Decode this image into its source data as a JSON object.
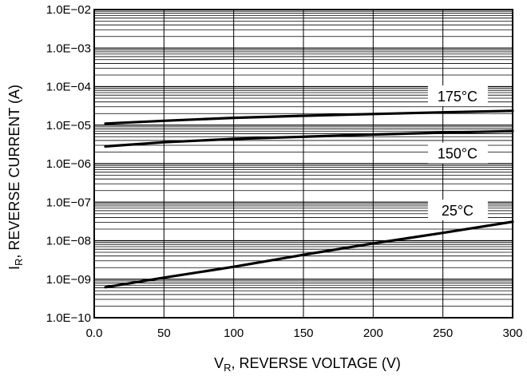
{
  "chart_data": {
    "type": "line",
    "title": "",
    "xlabel": {
      "main": "V",
      "sub": "R",
      "rest": ", REVERSE VOLTAGE (V)"
    },
    "ylabel": {
      "main": "I",
      "sub": "R",
      "rest": ", REVERSE CURRENT (A)"
    },
    "xlim": [
      0,
      300
    ],
    "ylim": [
      1e-10,
      0.01
    ],
    "yscale": "log",
    "grid": true,
    "x_ticks": [
      0,
      50,
      100,
      150,
      200,
      250,
      300
    ],
    "x_tick_labels": [
      "0.0",
      "50",
      "100",
      "150",
      "200",
      "250",
      "300"
    ],
    "y_ticks": [
      1e-10,
      1e-09,
      1e-08,
      1e-07,
      1e-06,
      1e-05,
      0.0001,
      0.001,
      0.01
    ],
    "y_tick_labels": [
      "1.0E−10",
      "1.0E−09",
      "1.0E−08",
      "1.0E−07",
      "1.0E−06",
      "1.0E−05",
      "1.0E−04",
      "1.0E−03",
      "1.0E−02"
    ],
    "series": [
      {
        "name": "175°C",
        "x": [
          8,
          50,
          100,
          150,
          200,
          250,
          300
        ],
        "y": [
          1.1e-05,
          1.3e-05,
          1.55e-05,
          1.75e-05,
          1.95e-05,
          2.15e-05,
          2.35e-05
        ],
        "label_x": 245,
        "label_y": 5.5e-05
      },
      {
        "name": "150°C",
        "x": [
          8,
          50,
          100,
          150,
          200,
          250,
          300
        ],
        "y": [
          2.8e-06,
          3.6e-06,
          4.4e-06,
          5e-06,
          5.7e-06,
          6.4e-06,
          7e-06
        ],
        "label_x": 245,
        "label_y": 1.8e-06
      },
      {
        "name": "25°C",
        "x": [
          8,
          50,
          100,
          150,
          200,
          250,
          300
        ],
        "y": [
          6.2e-10,
          1.1e-09,
          2.1e-09,
          4.3e-09,
          8.5e-09,
          1.6e-08,
          3.1e-08
        ],
        "label_x": 245,
        "label_y": 6e-08
      }
    ]
  }
}
